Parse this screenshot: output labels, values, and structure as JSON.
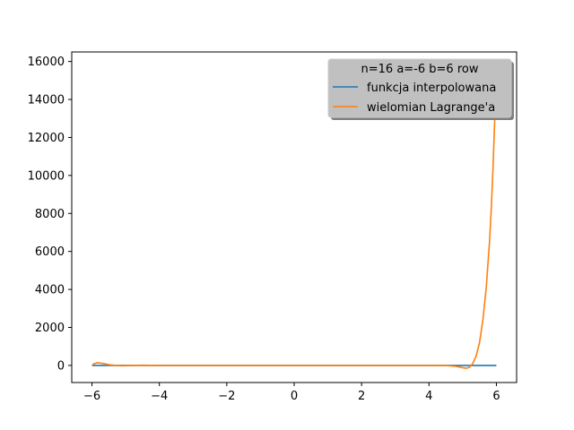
{
  "chart_data": {
    "type": "line",
    "title": "",
    "xlabel": "",
    "ylabel": "",
    "xlim": [
      -6.6,
      6.6
    ],
    "ylim": [
      -900,
      16500
    ],
    "xticks": [
      -6,
      -4,
      -2,
      0,
      2,
      4,
      6
    ],
    "xtick_labels": [
      "−6",
      "−4",
      "−2",
      "0",
      "2",
      "4",
      "6"
    ],
    "yticks": [
      0,
      2000,
      4000,
      6000,
      8000,
      10000,
      12000,
      14000,
      16000
    ],
    "ytick_labels": [
      "0",
      "2000",
      "4000",
      "6000",
      "8000",
      "10000",
      "12000",
      "14000",
      "16000"
    ],
    "grid": false,
    "legend": {
      "title": "n=16 a=-6 b=6 row",
      "placement": "top-right",
      "facecolor": "#c0c0c0"
    },
    "series": [
      {
        "name": "funkcja interpolowana",
        "color": "#1f77b4",
        "x": [
          -6,
          -5,
          -4,
          -3,
          -2,
          -1,
          0,
          1,
          2,
          3,
          4,
          5,
          6
        ],
        "y": [
          0,
          0,
          0,
          0,
          0,
          0,
          0,
          0,
          0,
          0,
          0,
          0,
          0
        ]
      },
      {
        "name": "wielomian Lagrange'a",
        "color": "#ff7f0e",
        "x": [
          -6.0,
          -5.95,
          -5.85,
          -5.7,
          -5.5,
          -5.3,
          -5.1,
          -4.8,
          -4.5,
          -4.0,
          -3.0,
          -2.0,
          -1.0,
          0.0,
          1.0,
          2.0,
          3.0,
          4.0,
          4.5,
          4.8,
          5.0,
          5.1,
          5.2,
          5.3,
          5.4,
          5.5,
          5.6,
          5.7,
          5.8,
          5.85,
          5.9,
          5.95,
          6.0
        ],
        "y": [
          0,
          80,
          140,
          110,
          40,
          0,
          -20,
          0,
          10,
          0,
          0,
          0,
          0,
          0,
          0,
          0,
          0,
          0,
          0,
          -50,
          -120,
          -150,
          -100,
          100,
          500,
          1200,
          2400,
          4100,
          6600,
          8300,
          10400,
          12900,
          15700
        ]
      }
    ]
  }
}
